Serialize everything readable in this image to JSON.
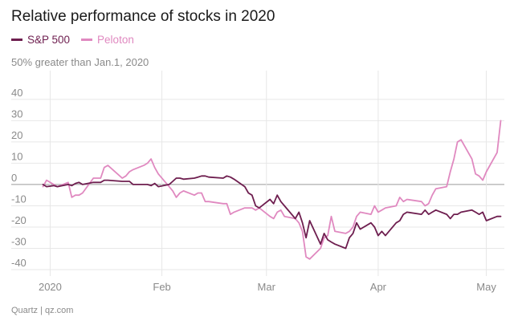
{
  "colors": {
    "sp500": "#6e1e4f",
    "peloton": "#e089c0",
    "grid": "#e7e7e7",
    "zero": "#9a9a9a",
    "axis_text": "#8a8a8a",
    "title": "#1a1a1a"
  },
  "chart_data": {
    "type": "line",
    "title": "Relative performance of stocks in 2020",
    "ylabel": "50% greater than Jan.1, 2020",
    "ylim": [
      -43,
      52
    ],
    "xlim": [
      "2019-12-27",
      "2020-05-06"
    ],
    "yticks": [
      -40,
      -30,
      -20,
      -10,
      0,
      10,
      20,
      30,
      40
    ],
    "xticks": [
      {
        "label": "2020",
        "date": "2020-01-01"
      },
      {
        "label": "Feb",
        "date": "2020-02-01"
      },
      {
        "label": "Mar",
        "date": "2020-03-01"
      },
      {
        "label": "Apr",
        "date": "2020-04-01"
      },
      {
        "label": "May",
        "date": "2020-05-01"
      }
    ],
    "legend_placement": "top-left",
    "grid": true,
    "source": "Quartz | qz.com",
    "series": [
      {
        "name": "S&P 500",
        "x": [
          "2019-12-30",
          "2019-12-31",
          "2020-01-02",
          "2020-01-03",
          "2020-01-06",
          "2020-01-07",
          "2020-01-08",
          "2020-01-09",
          "2020-01-10",
          "2020-01-13",
          "2020-01-14",
          "2020-01-15",
          "2020-01-16",
          "2020-01-17",
          "2020-01-21",
          "2020-01-22",
          "2020-01-23",
          "2020-01-24",
          "2020-01-27",
          "2020-01-28",
          "2020-01-29",
          "2020-01-30",
          "2020-01-31",
          "2020-02-03",
          "2020-02-04",
          "2020-02-05",
          "2020-02-06",
          "2020-02-07",
          "2020-02-10",
          "2020-02-11",
          "2020-02-12",
          "2020-02-13",
          "2020-02-14",
          "2020-02-18",
          "2020-02-19",
          "2020-02-20",
          "2020-02-21",
          "2020-02-24",
          "2020-02-25",
          "2020-02-26",
          "2020-02-27",
          "2020-02-28",
          "2020-03-02",
          "2020-03-03",
          "2020-03-04",
          "2020-03-05",
          "2020-03-06",
          "2020-03-09",
          "2020-03-10",
          "2020-03-11",
          "2020-03-12",
          "2020-03-13",
          "2020-03-16",
          "2020-03-17",
          "2020-03-18",
          "2020-03-19",
          "2020-03-20",
          "2020-03-23",
          "2020-03-24",
          "2020-03-25",
          "2020-03-26",
          "2020-03-27",
          "2020-03-30",
          "2020-03-31",
          "2020-04-01",
          "2020-04-02",
          "2020-04-03",
          "2020-04-06",
          "2020-04-07",
          "2020-04-08",
          "2020-04-09",
          "2020-04-13",
          "2020-04-14",
          "2020-04-15",
          "2020-04-16",
          "2020-04-17",
          "2020-04-20",
          "2020-04-21",
          "2020-04-22",
          "2020-04-23",
          "2020-04-24",
          "2020-04-27",
          "2020-04-28",
          "2020-04-29",
          "2020-04-30",
          "2020-05-01",
          "2020-05-04",
          "2020-05-05"
        ],
        "values": [
          0,
          -1,
          -0.5,
          -1,
          0,
          -0.5,
          0.5,
          1,
          0,
          1,
          1,
          1,
          2,
          2,
          1.5,
          1.5,
          1.5,
          0,
          0,
          0,
          -0.5,
          0.5,
          -1,
          0,
          1.5,
          3,
          3,
          2.5,
          3,
          3.5,
          4,
          4,
          3.5,
          3,
          4,
          3.5,
          2.5,
          -1,
          -4,
          -5,
          -10,
          -11,
          -7,
          -9,
          -5,
          -8,
          -10,
          -16,
          -13,
          -18,
          -25,
          -17,
          -28,
          -23,
          -26,
          -27,
          -28,
          -30,
          -25,
          -23,
          -18,
          -21,
          -18,
          -20,
          -24,
          -22,
          -24,
          -18,
          -17,
          -14,
          -13,
          -14,
          -12,
          -14,
          -13,
          -12,
          -14,
          -16,
          -14,
          -14,
          -13,
          -12,
          -13,
          -14,
          -13,
          -17,
          -15,
          -15
        ]
      },
      {
        "name": "Peloton",
        "x": [
          "2019-12-30",
          "2019-12-31",
          "2020-01-02",
          "2020-01-03",
          "2020-01-06",
          "2020-01-07",
          "2020-01-08",
          "2020-01-09",
          "2020-01-10",
          "2020-01-13",
          "2020-01-14",
          "2020-01-15",
          "2020-01-16",
          "2020-01-17",
          "2020-01-21",
          "2020-01-22",
          "2020-01-23",
          "2020-01-24",
          "2020-01-27",
          "2020-01-28",
          "2020-01-29",
          "2020-01-30",
          "2020-01-31",
          "2020-02-03",
          "2020-02-04",
          "2020-02-05",
          "2020-02-06",
          "2020-02-07",
          "2020-02-10",
          "2020-02-11",
          "2020-02-12",
          "2020-02-13",
          "2020-02-14",
          "2020-02-18",
          "2020-02-19",
          "2020-02-20",
          "2020-02-21",
          "2020-02-24",
          "2020-02-25",
          "2020-02-26",
          "2020-02-27",
          "2020-02-28",
          "2020-03-02",
          "2020-03-03",
          "2020-03-04",
          "2020-03-05",
          "2020-03-06",
          "2020-03-09",
          "2020-03-10",
          "2020-03-11",
          "2020-03-12",
          "2020-03-13",
          "2020-03-16",
          "2020-03-17",
          "2020-03-18",
          "2020-03-19",
          "2020-03-20",
          "2020-03-23",
          "2020-03-24",
          "2020-03-25",
          "2020-03-26",
          "2020-03-27",
          "2020-03-30",
          "2020-03-31",
          "2020-04-01",
          "2020-04-02",
          "2020-04-03",
          "2020-04-06",
          "2020-04-07",
          "2020-04-08",
          "2020-04-09",
          "2020-04-13",
          "2020-04-14",
          "2020-04-15",
          "2020-04-16",
          "2020-04-17",
          "2020-04-20",
          "2020-04-21",
          "2020-04-22",
          "2020-04-23",
          "2020-04-24",
          "2020-04-27",
          "2020-04-28",
          "2020-04-29",
          "2020-04-30",
          "2020-05-01",
          "2020-05-04",
          "2020-05-05"
        ],
        "values": [
          -1,
          2,
          0,
          -1,
          1,
          -6,
          -5,
          -5,
          -4,
          3,
          3,
          3,
          8,
          9,
          3,
          4,
          6,
          7,
          9,
          10,
          12,
          8,
          5,
          -1,
          -3,
          -6,
          -4,
          -3,
          -5,
          -4,
          -4,
          -8,
          -8,
          -9,
          -9,
          -14,
          -13,
          -11,
          -11,
          -11,
          -12,
          -11,
          -15,
          -16,
          -13,
          -12,
          -15,
          -16,
          -18,
          -22,
          -34,
          -35,
          -30,
          -25,
          -24,
          -15,
          -22,
          -23,
          -22,
          -20,
          -15,
          -13,
          -14,
          -10,
          -13,
          -12,
          -11,
          -10,
          -6,
          -8,
          -7,
          -8,
          -10,
          -9,
          -5,
          -2,
          -1,
          6,
          12,
          20,
          21,
          12,
          5,
          4,
          2,
          6,
          15,
          30
        ]
      }
    ]
  }
}
